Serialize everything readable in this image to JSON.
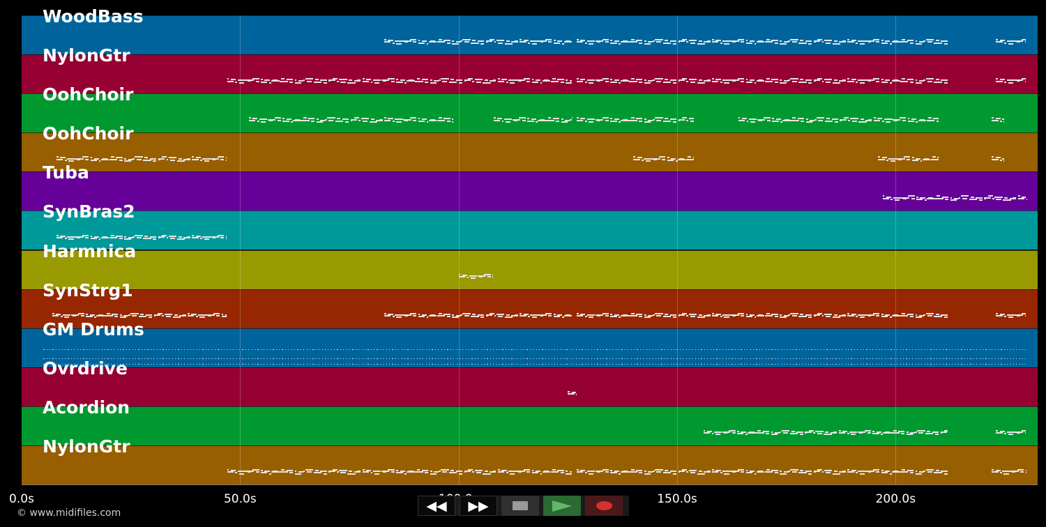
{
  "tracks": [
    {
      "name": "WoodBass",
      "color": "#00649c",
      "segments": [
        [
          83,
          126
        ],
        [
          127,
          212
        ],
        [
          223,
          230
        ]
      ]
    },
    {
      "name": "NylonGtr",
      "color": "#970033",
      "segments": [
        [
          47,
          126
        ],
        [
          127,
          212
        ],
        [
          223,
          230
        ]
      ]
    },
    {
      "name": "OohChoir",
      "color": "#009930",
      "segments": [
        [
          52,
          99
        ],
        [
          108,
          126
        ],
        [
          127,
          154
        ],
        [
          164,
          210
        ],
        [
          222,
          225
        ]
      ]
    },
    {
      "name": "OohChoir",
      "color": "#975f00",
      "segments": [
        [
          8,
          47
        ],
        [
          140,
          154
        ],
        [
          196,
          210
        ],
        [
          222,
          225
        ]
      ]
    },
    {
      "name": "Tuba",
      "color": "#650099",
      "segments": [
        [
          197,
          230
        ]
      ]
    },
    {
      "name": "SynBras2",
      "color": "#00999a",
      "segments": [
        [
          8,
          47
        ]
      ]
    },
    {
      "name": "Harmnica",
      "color": "#999900",
      "segments": [
        [
          100,
          108
        ]
      ]
    },
    {
      "name": "SynStrg1",
      "color": "#972700",
      "segments": [
        [
          7,
          47
        ],
        [
          83,
          126
        ],
        [
          127,
          212
        ],
        [
          223,
          230
        ]
      ]
    },
    {
      "name": "GM Drums",
      "color": "#00649c",
      "segments": [
        [
          5,
          230
        ]
      ]
    },
    {
      "name": "Ovrdrive",
      "color": "#970033",
      "segments": [
        [
          125,
          127
        ]
      ]
    },
    {
      "name": "Acordion",
      "color": "#009930",
      "segments": [
        [
          156,
          212
        ],
        [
          223,
          230
        ]
      ]
    },
    {
      "name": "NylonGtr",
      "color": "#975f00",
      "segments": [
        [
          47,
          126
        ],
        [
          127,
          212
        ],
        [
          222,
          230
        ]
      ]
    }
  ],
  "axis": {
    "xlim": [
      0,
      232.5
    ],
    "ticks": [
      {
        "value": 0,
        "label": "0.0s"
      },
      {
        "value": 50,
        "label": "50.0s"
      },
      {
        "value": 100,
        "label": "100.0s"
      },
      {
        "value": 150,
        "label": "150.0s"
      },
      {
        "value": 200,
        "label": "200.0s"
      }
    ]
  },
  "footer": {
    "copyright": "© www.midifiles.com"
  },
  "transport": {
    "rewind_label": "◀◀",
    "forward_label": "▶▶",
    "stop_icon": "stop-icon",
    "play_icon": "play-icon",
    "record_icon": "record-icon"
  }
}
